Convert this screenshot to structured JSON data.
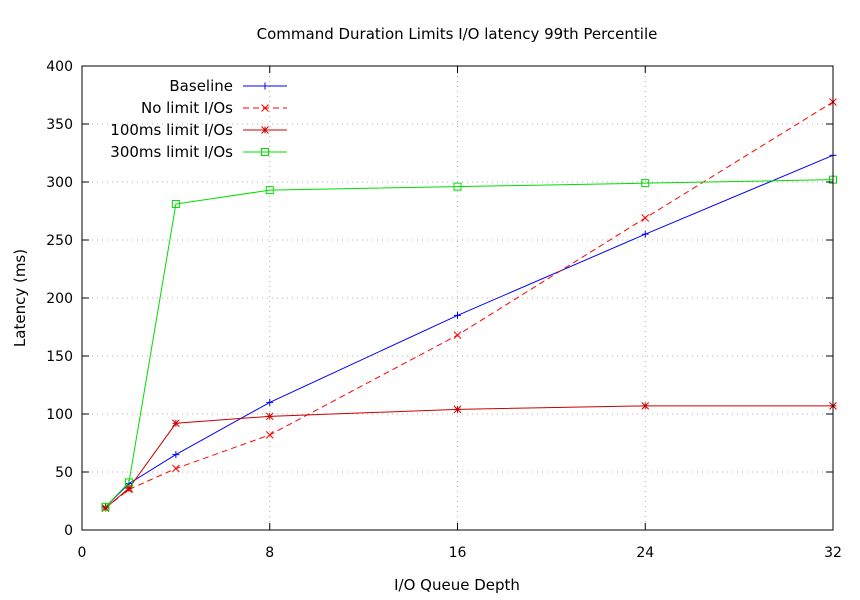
{
  "chart_data": {
    "type": "line",
    "title": "Command Duration Limits I/O latency 99th Percentile",
    "xlabel": "I/O Queue Depth",
    "ylabel": "Latency (ms)",
    "xlim": [
      0,
      32
    ],
    "ylim": [
      0,
      400
    ],
    "xticks": [
      0,
      8,
      16,
      24,
      32
    ],
    "yticks": [
      0,
      50,
      100,
      150,
      200,
      250,
      300,
      350,
      400
    ],
    "grid": true,
    "legend_position": "top-left",
    "series": [
      {
        "name": "Baseline",
        "color": "#0000ff",
        "dash": "solid",
        "marker": "plus",
        "x": [
          1,
          2,
          4,
          8,
          16,
          24,
          32
        ],
        "y": [
          20,
          40,
          65,
          110,
          185,
          255,
          323
        ]
      },
      {
        "name": "No limit I/Os",
        "color": "#ff0000",
        "dash": "dashed",
        "marker": "cross",
        "x": [
          1,
          2,
          4,
          8,
          16,
          24,
          32
        ],
        "y": [
          19,
          35,
          53,
          82,
          168,
          269,
          369
        ]
      },
      {
        "name": "100ms limit I/Os",
        "color": "#cc0000",
        "dash": "solid",
        "marker": "star",
        "x": [
          1,
          2,
          4,
          8,
          16,
          24,
          32
        ],
        "y": [
          19,
          36,
          92,
          98,
          104,
          107,
          107
        ]
      },
      {
        "name": "300ms limit I/Os",
        "color": "#00dd00",
        "dash": "solid",
        "marker": "square",
        "x": [
          1,
          2,
          4,
          8,
          16,
          24,
          32
        ],
        "y": [
          20,
          41,
          281,
          293,
          296,
          299,
          302
        ]
      }
    ]
  }
}
